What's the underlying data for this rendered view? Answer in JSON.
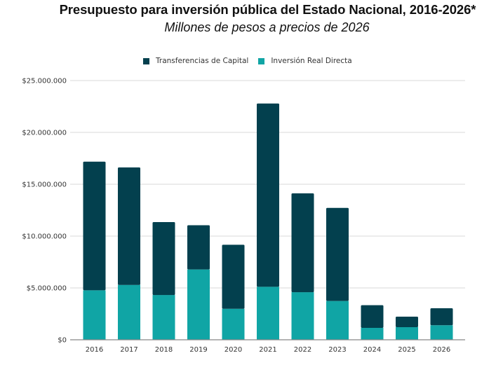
{
  "chart_data": {
    "type": "bar",
    "stacked": true,
    "title": "Presupuesto para inversión pública del Estado Nacional, 2016-2026*",
    "subtitle": "Millones de pesos a precios de 2026",
    "xlabel": "",
    "ylabel": "",
    "categories": [
      "2016",
      "2017",
      "2018",
      "2019",
      "2020",
      "2021",
      "2022",
      "2023",
      "2024",
      "2025",
      "2026"
    ],
    "series": [
      {
        "name": "Inversión Real Directa",
        "color": "#10A5A5",
        "values": [
          4770000,
          5290000,
          4320000,
          6780000,
          2990000,
          5110000,
          4590000,
          3740000,
          1150000,
          1220000,
          1400000
        ]
      },
      {
        "name": "Transferencias de Capital",
        "color": "#03404E",
        "values": [
          12410000,
          11330000,
          7030000,
          4270000,
          6170000,
          17680000,
          9530000,
          8980000,
          2190000,
          1010000,
          1640000
        ]
      }
    ],
    "ylim": [
      0,
      25000000
    ],
    "yticks": [
      0,
      5000000,
      10000000,
      15000000,
      20000000,
      25000000
    ],
    "ytick_labels": [
      "$0",
      "$5.000.000",
      "$10.000.000",
      "$15.000.000",
      "$20.000.000",
      "$25.000.000"
    ],
    "grid": true,
    "legend": {
      "position": "top-center",
      "entries": [
        {
          "label": "Transferencias de Capital",
          "color": "#03404E"
        },
        {
          "label": "Inversión Real Directa",
          "color": "#10A5A5"
        }
      ]
    }
  }
}
